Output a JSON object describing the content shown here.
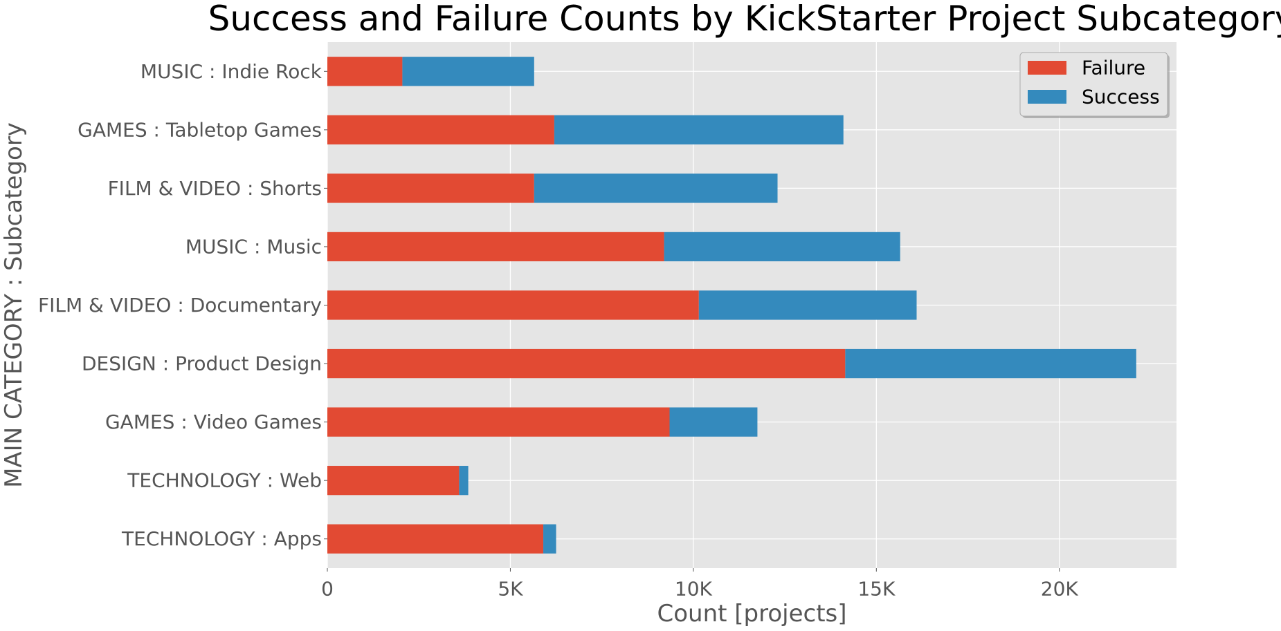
{
  "chart_data": {
    "type": "bar",
    "orientation": "horizontal",
    "stacked": true,
    "title": "Success and Failure Counts by KickStarter Project Subcategory",
    "xlabel": "Count [projects]",
    "ylabel": "MAIN CATEGORY : Subcategory",
    "xlim": [
      0,
      23200
    ],
    "xticks": [
      0,
      5000,
      10000,
      15000,
      20000
    ],
    "xtick_labels": [
      "0",
      "5K",
      "10K",
      "15K",
      "20K"
    ],
    "categories": [
      "MUSIC : Indie Rock",
      "GAMES : Tabletop Games",
      "FILM & VIDEO : Shorts",
      "MUSIC : Music",
      "FILM & VIDEO : Documentary",
      "DESIGN : Product Design",
      "GAMES : Video Games",
      "TECHNOLOGY : Web",
      "TECHNOLOGY : Apps"
    ],
    "series": [
      {
        "name": "Failure",
        "color": "#E24A33",
        "values": [
          2050,
          6200,
          5650,
          9200,
          10150,
          14150,
          9350,
          3600,
          5900
        ]
      },
      {
        "name": "Success",
        "color": "#348ABD",
        "values": [
          3600,
          7900,
          6650,
          6450,
          5950,
          7950,
          2400,
          250,
          350
        ]
      }
    ],
    "grid": true,
    "legend_position": "top-right",
    "background": "#E5E5E5"
  }
}
